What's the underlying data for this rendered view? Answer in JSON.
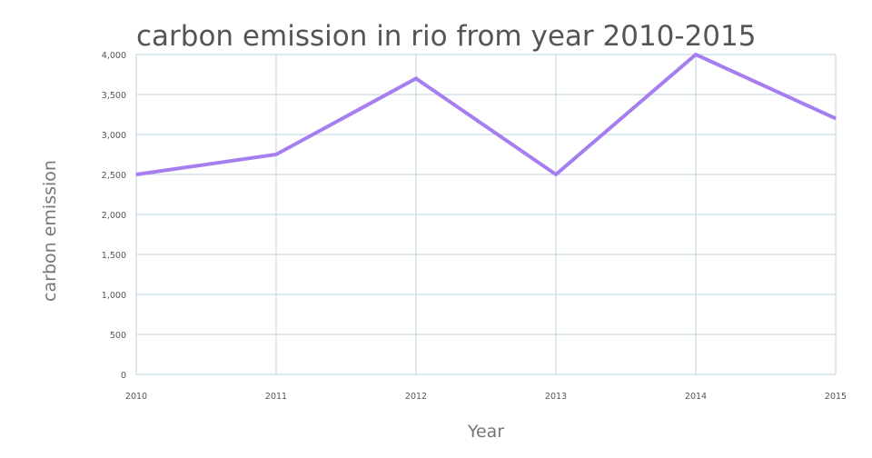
{
  "chart_data": {
    "type": "line",
    "title": "carbon emission in rio from year 2010-2015",
    "xlabel": "Year",
    "ylabel": "carbon emission",
    "categories": [
      "2010",
      "2011",
      "2012",
      "2013",
      "2014",
      "2015"
    ],
    "series": [
      {
        "values": [
          2500,
          2750,
          3700,
          2500,
          4000,
          3200
        ],
        "color": "#a57ef0"
      }
    ],
    "ylim": [
      0,
      4000
    ],
    "yticks": [
      0,
      500,
      1000,
      1500,
      2000,
      2500,
      3000,
      3500,
      4000
    ],
    "ytick_labels": [
      "0",
      "500",
      "1,000",
      "1,500",
      "2,000",
      "2,500",
      "3,000",
      "3,500",
      "4,000"
    ],
    "grid": true,
    "colors": {
      "grid": "#bcd4e0",
      "title": "#555555",
      "axis_label": "#777777",
      "tick_label": "#555555"
    }
  }
}
